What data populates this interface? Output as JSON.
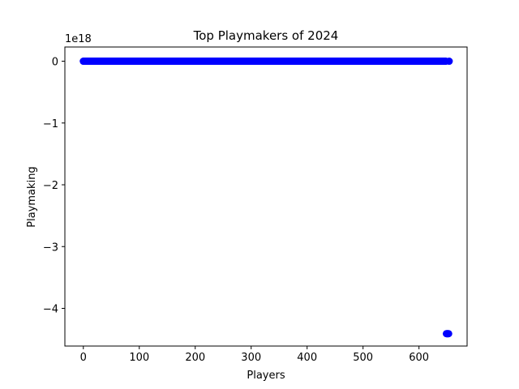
{
  "chart_data": {
    "type": "scatter",
    "title": "Top Playmakers of 2024",
    "xlabel": "Players",
    "ylabel": "Playmaking",
    "y_offset_text": "1e18",
    "xlim": [
      -33,
      686
    ],
    "ylim": [
      -4.61,
      0.23
    ],
    "x_ticks": [
      0,
      100,
      200,
      300,
      400,
      500,
      600
    ],
    "x_tick_labels": [
      "0",
      "100",
      "200",
      "300",
      "400",
      "500",
      "600"
    ],
    "y_ticks": [
      0,
      -1,
      -2,
      -3,
      -4
    ],
    "y_tick_labels": [
      "0",
      "−1",
      "−2",
      "−3",
      "−4"
    ],
    "grid": false,
    "legend": "none",
    "colors": {
      "points": "#0000ff"
    },
    "series": [
      {
        "x_start": 0,
        "x_end": 654,
        "y_default": 0,
        "outliers": [
          {
            "x": 649,
            "y": -4.41
          },
          {
            "x": 650,
            "y": -4.41
          },
          {
            "x": 651,
            "y": -4.41
          },
          {
            "x": 652,
            "y": -4.41
          },
          {
            "x": 653,
            "y": -4.41
          }
        ]
      }
    ]
  }
}
